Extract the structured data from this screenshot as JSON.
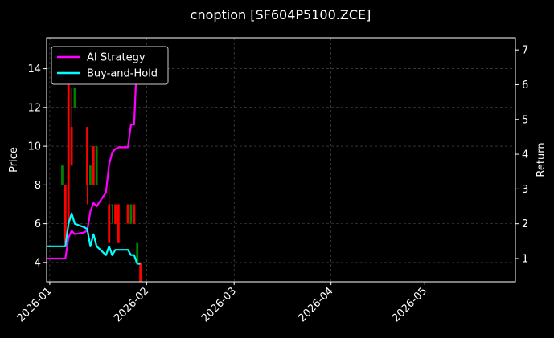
{
  "chart_data": {
    "type": "line",
    "title": "cnoption [SF604P5100.ZCE]",
    "xlabel": "",
    "ylabel": "Price",
    "y2label": "Return",
    "x_range": [
      "2025-12-31",
      "2026-05-30"
    ],
    "ylim": [
      3.0,
      15.6
    ],
    "y2lim": [
      0.33,
      7.35
    ],
    "x_ticks": [
      "2026-01",
      "2026-02",
      "2026-03",
      "2026-04",
      "2026-05"
    ],
    "y_ticks": [
      4,
      6,
      8,
      10,
      12,
      14
    ],
    "y2_ticks": [
      1,
      2,
      3,
      4,
      5,
      6,
      7
    ],
    "grid": true,
    "legend_position": "top-left",
    "legend": [
      "AI Strategy",
      "Buy-and-Hold"
    ],
    "colors": {
      "background": "#000000",
      "ai_strategy": "#ff00ff",
      "buy_and_hold": "#00ffff",
      "candle_up": "#008000",
      "candle_down": "#ff0000",
      "grid": "#555555",
      "axis": "#ffffff"
    },
    "candles": [
      {
        "date": "2026-01-05",
        "open": 8.0,
        "high": 9.0,
        "low": 8.0,
        "close": 9.0
      },
      {
        "date": "2026-01-06",
        "open": 8.0,
        "high": 8.0,
        "low": 5.0,
        "close": 5.0
      },
      {
        "date": "2026-01-07",
        "open": 14.0,
        "high": 14.0,
        "low": 6.0,
        "close": 6.0
      },
      {
        "date": "2026-01-08",
        "open": 11.0,
        "high": 13.0,
        "low": 9.0,
        "close": 9.0
      },
      {
        "date": "2026-01-09",
        "open": 12.0,
        "high": 13.0,
        "low": 12.0,
        "close": 13.0
      },
      {
        "date": "2026-01-13",
        "open": 11.0,
        "high": 11.0,
        "low": 7.0,
        "close": 8.0
      },
      {
        "date": "2026-01-14",
        "open": 8.0,
        "high": 9.0,
        "low": 8.0,
        "close": 9.0
      },
      {
        "date": "2026-01-15",
        "open": 10.0,
        "high": 10.0,
        "low": 8.0,
        "close": 8.0
      },
      {
        "date": "2026-01-16",
        "open": 8.0,
        "high": 10.0,
        "low": 8.0,
        "close": 10.0
      },
      {
        "date": "2026-01-20",
        "open": 7.0,
        "high": 8.0,
        "low": 5.0,
        "close": 5.0
      },
      {
        "date": "2026-01-21",
        "open": 7.0,
        "high": 7.0,
        "low": 6.0,
        "close": 7.0
      },
      {
        "date": "2026-01-22",
        "open": 7.0,
        "high": 7.0,
        "low": 6.0,
        "close": 6.0
      },
      {
        "date": "2026-01-23",
        "open": 7.0,
        "high": 7.0,
        "low": 5.0,
        "close": 5.0
      },
      {
        "date": "2026-01-26",
        "open": 7.0,
        "high": 7.0,
        "low": 6.0,
        "close": 6.0
      },
      {
        "date": "2026-01-27",
        "open": 6.0,
        "high": 7.0,
        "low": 6.0,
        "close": 7.0
      },
      {
        "date": "2026-01-28",
        "open": 7.0,
        "high": 7.0,
        "low": 6.0,
        "close": 6.0
      },
      {
        "date": "2026-01-29",
        "open": 4.0,
        "high": 5.0,
        "low": 4.0,
        "close": 5.0
      },
      {
        "date": "2026-01-30",
        "open": 4.0,
        "high": 4.0,
        "low": 3.0,
        "close": 3.0
      }
    ],
    "series": [
      {
        "name": "AI Strategy",
        "axis": "right",
        "x": [
          "2025-12-31",
          "2026-01-02",
          "2026-01-05",
          "2026-01-06",
          "2026-01-07",
          "2026-01-08",
          "2026-01-09",
          "2026-01-12",
          "2026-01-13",
          "2026-01-14",
          "2026-01-15",
          "2026-01-16",
          "2026-01-19",
          "2026-01-20",
          "2026-01-21",
          "2026-01-22",
          "2026-01-23",
          "2026-01-26",
          "2026-01-27",
          "2026-01-28",
          "2026-01-29"
        ],
        "values": [
          1.0,
          1.0,
          1.0,
          1.0,
          1.6,
          1.8,
          1.7,
          1.75,
          1.8,
          2.35,
          2.6,
          2.5,
          2.9,
          3.7,
          4.05,
          4.15,
          4.2,
          4.2,
          4.85,
          4.85,
          6.9
        ]
      },
      {
        "name": "Buy-and-Hold",
        "axis": "right",
        "x": [
          "2025-12-31",
          "2026-01-02",
          "2026-01-05",
          "2026-01-06",
          "2026-01-07",
          "2026-01-08",
          "2026-01-09",
          "2026-01-12",
          "2026-01-13",
          "2026-01-14",
          "2026-01-15",
          "2026-01-16",
          "2026-01-19",
          "2026-01-20",
          "2026-01-21",
          "2026-01-22",
          "2026-01-23",
          "2026-01-26",
          "2026-01-27",
          "2026-01-28",
          "2026-01-29",
          "2026-01-30"
        ],
        "values": [
          1.35,
          1.35,
          1.35,
          1.35,
          2.0,
          2.3,
          2.0,
          1.9,
          1.85,
          1.35,
          1.7,
          1.35,
          1.1,
          1.35,
          1.1,
          1.25,
          1.25,
          1.25,
          1.1,
          1.1,
          0.85,
          0.85
        ]
      }
    ]
  }
}
